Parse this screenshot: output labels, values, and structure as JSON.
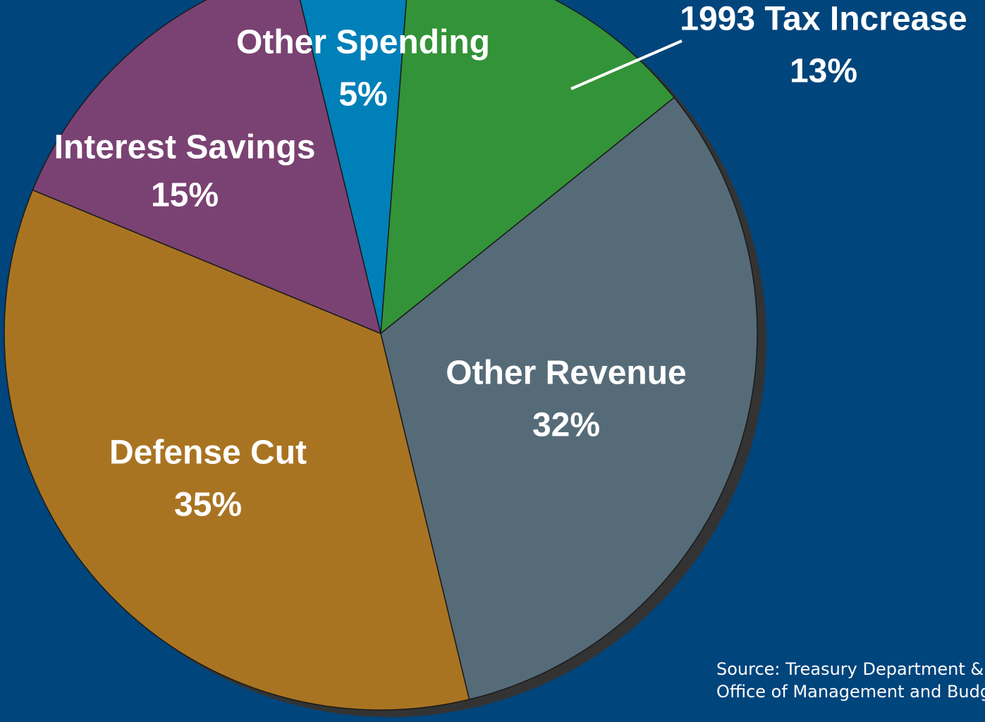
{
  "chart_data": {
    "type": "pie",
    "categories": [
      "1993 Tax Increase",
      "Other Revenue",
      "Defense Cut",
      "Interest Savings",
      "Other Spending"
    ],
    "values": [
      13,
      32,
      35,
      15,
      5
    ],
    "value_labels": [
      "13%",
      "32%",
      "35%",
      "15%",
      "5%"
    ],
    "colors": [
      "#339338",
      "#566b78",
      "#a97422",
      "#7a4273",
      "#0080b8"
    ],
    "source": [
      "Source: Treasury Department &",
      "Office of Management and Budget"
    ]
  }
}
